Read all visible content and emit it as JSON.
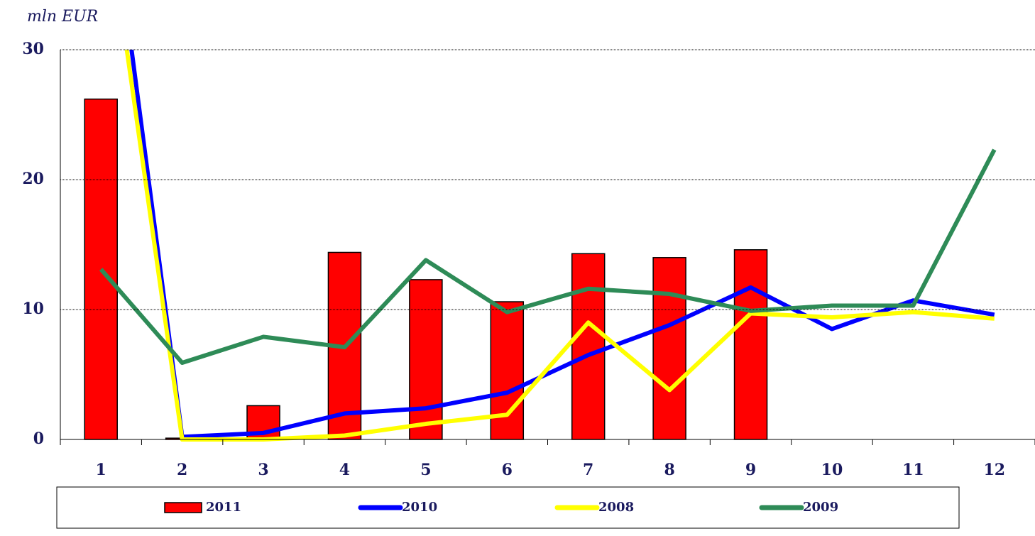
{
  "chart_data": {
    "type": "combo",
    "y_label": "mln EUR",
    "categories": [
      "1",
      "2",
      "3",
      "4",
      "5",
      "6",
      "7",
      "8",
      "9",
      "10",
      "11",
      "12"
    ],
    "series": [
      {
        "name": "2011",
        "type": "bar",
        "color": "#ff0000",
        "values": [
          26.2,
          0.1,
          2.6,
          14.4,
          12.3,
          10.6,
          14.3,
          14.0,
          14.6,
          null,
          null,
          null
        ]
      },
      {
        "name": "2010",
        "type": "line",
        "color": "#0000ff",
        "values": [
          48,
          0.2,
          0.5,
          2.0,
          2.4,
          3.6,
          6.5,
          8.8,
          11.7,
          8.5,
          10.7,
          9.6
        ]
      },
      {
        "name": "2008",
        "type": "line",
        "color": "#ffff00",
        "values": [
          44,
          0,
          0,
          0.3,
          1.2,
          1.9,
          9.0,
          3.8,
          9.7,
          9.4,
          9.8,
          9.3
        ]
      },
      {
        "name": "2009",
        "type": "line",
        "color": "#2e8b57",
        "values": [
          13.1,
          5.9,
          7.9,
          7.1,
          13.8,
          9.8,
          11.6,
          11.2,
          9.9,
          10.3,
          10.3,
          22.3
        ]
      }
    ],
    "ylim": [
      0,
      30
    ],
    "yticks": [
      0,
      10,
      20,
      30
    ],
    "grid": true
  }
}
